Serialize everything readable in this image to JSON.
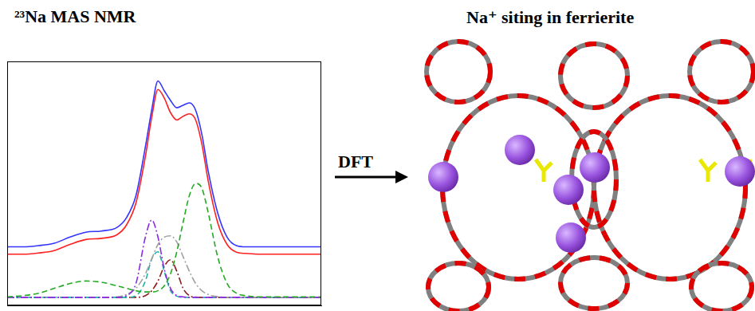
{
  "panels": {
    "left_title": "²³Na MAS NMR",
    "right_title": "Na⁺ siting in ferrierite",
    "arrow_label": "DFT"
  },
  "chart_data": {
    "type": "line",
    "x": [
      0,
      5,
      10,
      15,
      20,
      25,
      30,
      35,
      38,
      41,
      44,
      46,
      48,
      50,
      52,
      54,
      56,
      58,
      60,
      62,
      64,
      67,
      70,
      73,
      76,
      80,
      85,
      90,
      95,
      100
    ],
    "series": [
      {
        "color": "#3434ff",
        "line_style": "solid",
        "values": [
          24,
          24,
          24.5,
          25.5,
          28,
          30,
          30.5,
          32,
          36,
          45,
          65,
          80,
          92,
          88,
          84,
          81,
          82,
          83,
          80,
          70,
          55,
          38,
          28,
          24.5,
          24,
          24,
          24,
          24,
          24,
          24
        ]
      },
      {
        "color": "#ff2020",
        "line_style": "solid",
        "values": [
          21,
          21,
          21.5,
          22.5,
          25,
          27,
          27.5,
          29,
          33,
          42,
          61,
          77,
          88.5,
          85,
          79,
          76,
          77.5,
          78.5,
          76,
          66,
          51,
          34,
          25,
          21.8,
          21.3,
          21,
          21,
          21,
          21,
          21
        ]
      },
      {
        "color": "#22aa22",
        "line_style": "dashed",
        "values": [
          3.5,
          4,
          5,
          7,
          9,
          10,
          9.5,
          8,
          7,
          6,
          5.5,
          5.5,
          6,
          8,
          13,
          22,
          34,
          45,
          50,
          48,
          38,
          20,
          9,
          5,
          4,
          3.5,
          3.5,
          3.5,
          3.5,
          3.5
        ]
      },
      {
        "color": "#8a2be2",
        "line_style": "dashdot",
        "values": [
          3.3,
          3.3,
          3.3,
          3.3,
          3.3,
          3.3,
          3.3,
          3.3,
          4,
          9,
          28,
          35,
          28,
          15,
          7,
          4,
          3.5,
          3.3,
          3.3,
          3.3,
          3.3,
          3.3,
          3.3,
          3.3,
          3.3,
          3.3,
          3.3,
          3.3,
          3.3,
          3.3
        ]
      },
      {
        "color": "#a0a0a0",
        "line_style": "dashdot",
        "values": [
          3.3,
          3.3,
          3.3,
          3.3,
          3.3,
          3.3,
          3.3,
          3.5,
          4.5,
          7,
          13,
          19,
          25,
          28,
          28.5,
          26,
          20,
          14,
          9,
          6,
          4.5,
          3.6,
          3.3,
          3.3,
          3.3,
          3.3,
          3.3,
          3.3,
          3.3,
          3.3
        ]
      },
      {
        "color": "#20b2aa",
        "line_style": "dashed",
        "values": [
          3.3,
          3.3,
          3.3,
          3.3,
          3.3,
          3.3,
          3.3,
          3.3,
          3.3,
          4,
          10,
          19,
          22,
          14,
          6,
          3.8,
          3.3,
          3.3,
          3.3,
          3.3,
          3.3,
          3.3,
          3.3,
          3.3,
          3.3,
          3.3,
          3.3,
          3.3,
          3.3,
          3.3
        ]
      },
      {
        "color": "#8b1a1a",
        "line_style": "dashdot",
        "values": [
          3.3,
          3.3,
          3.3,
          3.3,
          3.3,
          3.3,
          3.3,
          3.3,
          3.3,
          3.3,
          4,
          6,
          10,
          16,
          18.7,
          14,
          7,
          4,
          3.4,
          3.3,
          3.3,
          3.3,
          3.3,
          3.3,
          3.3,
          3.3,
          3.3,
          3.3,
          3.3,
          3.3
        ]
      }
    ],
    "xlim": [
      0,
      100
    ],
    "ylim": [
      0,
      100
    ],
    "xticks": [],
    "yticks": [],
    "grid": false,
    "tick_labels": false
  }
}
